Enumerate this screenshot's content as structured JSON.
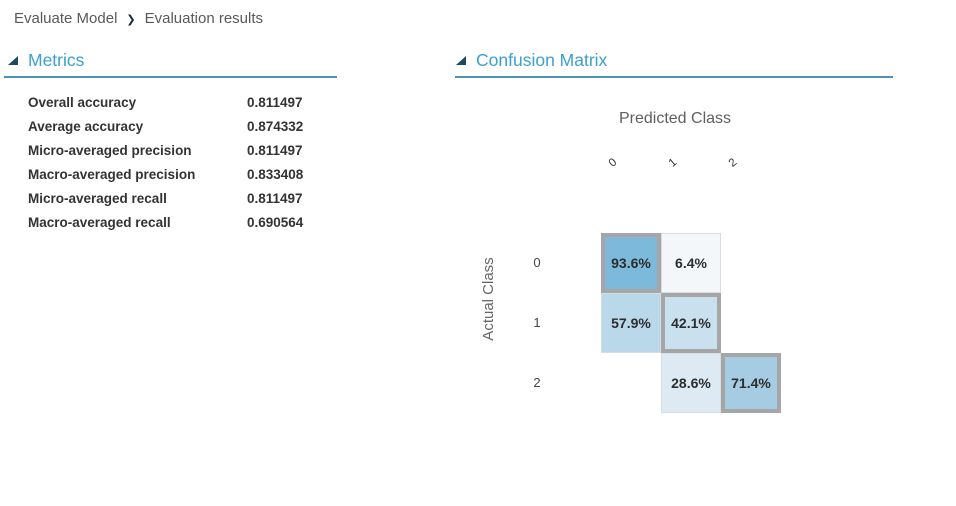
{
  "breadcrumb": {
    "separator": "❯",
    "items": [
      "Evaluate Model",
      "Evaluation results"
    ]
  },
  "metrics": {
    "title": "Metrics",
    "rows": [
      {
        "label": "Overall accuracy",
        "value": "0.811497"
      },
      {
        "label": "Average accuracy",
        "value": "0.874332"
      },
      {
        "label": "Micro-averaged precision",
        "value": "0.811497"
      },
      {
        "label": "Macro-averaged precision",
        "value": "0.833408"
      },
      {
        "label": "Micro-averaged recall",
        "value": "0.811497"
      },
      {
        "label": "Macro-averaged recall",
        "value": "0.690564"
      }
    ]
  },
  "confusion_matrix": {
    "title": "Confusion Matrix",
    "x_axis_title": "Predicted Class",
    "y_axis_title": "Actual Class",
    "col_labels": [
      "0",
      "1",
      "2"
    ],
    "row_labels": [
      "0",
      "1",
      "2"
    ],
    "cells": [
      [
        {
          "value": "93.6%",
          "bg": "#7db9da",
          "style": "diagonal"
        },
        {
          "value": "6.4%",
          "bg": "#f3f7fa",
          "style": "plain"
        },
        {
          "value": "",
          "bg": "",
          "style": "empty"
        }
      ],
      [
        {
          "value": "57.9%",
          "bg": "#b9d8e9",
          "style": "plain"
        },
        {
          "value": "42.1%",
          "bg": "#c9e0ee",
          "style": "diagonal"
        },
        {
          "value": "",
          "bg": "",
          "style": "empty"
        }
      ],
      [
        {
          "value": "",
          "bg": "",
          "style": "empty"
        },
        {
          "value": "28.6%",
          "bg": "#ddeaf3",
          "style": "plain"
        },
        {
          "value": "71.4%",
          "bg": "#a5cce2",
          "style": "diagonal"
        }
      ]
    ]
  },
  "chart_data": {
    "type": "heatmap",
    "title": "Confusion Matrix",
    "xlabel": "Predicted Class",
    "ylabel": "Actual Class",
    "categories_x": [
      "0",
      "1",
      "2"
    ],
    "categories_y": [
      "0",
      "1",
      "2"
    ],
    "values_percent": [
      [
        93.6,
        6.4,
        null
      ],
      [
        57.9,
        42.1,
        null
      ],
      [
        null,
        28.6,
        71.4
      ]
    ]
  },
  "colors": {
    "header_blue": "#3ba0ce",
    "underline": "#4e93b4",
    "triangle": "#1d4a63",
    "diagonal_border": "#a6a6a6",
    "light_border": "#d6dee4",
    "cell_high": "#7db9da",
    "cell_low": "#f3f7fa"
  }
}
